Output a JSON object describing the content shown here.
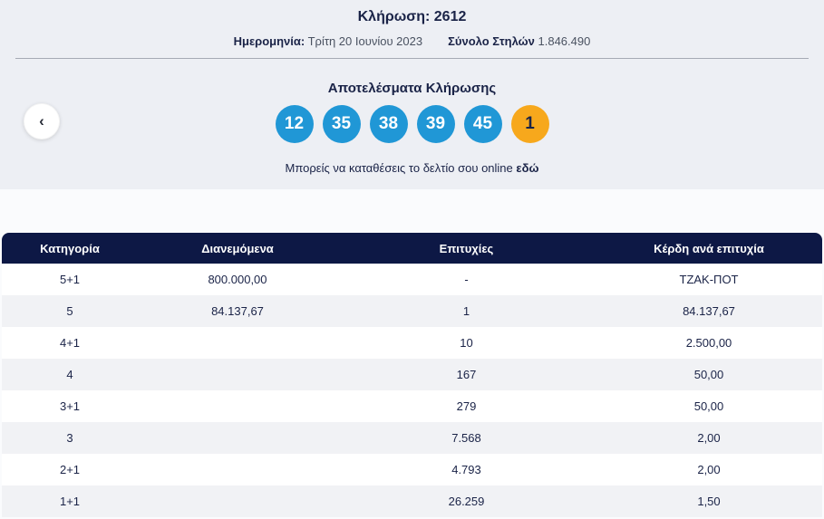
{
  "draw": {
    "title_label": "Κλήρωση:",
    "title_number": "2612",
    "date_label": "Ημερομηνία:",
    "date_value": "Τρίτη 20 Ιουνίου 2023",
    "columns_label": "Σύνολο Στηλών",
    "columns_value": "1.846.490",
    "results_heading": "Αποτελέσματα Κλήρωσης",
    "numbers": [
      "12",
      "35",
      "38",
      "39",
      "45"
    ],
    "bonus_number": "1",
    "online_text": "Μπορείς να καταθέσεις το δελτίο σου online",
    "online_link_label": "εδώ"
  },
  "nav": {
    "prev_arrow": "‹"
  },
  "colors": {
    "panel_bg": "#edeff4",
    "header_navy": "#0d1845",
    "ball_blue": "#2097d6",
    "ball_orange": "#f7a81c",
    "text_navy": "#1a2347",
    "row_alt_gray": "#f1f2f5"
  },
  "table": {
    "headers": [
      "Κατηγορία",
      "Διανεμόμενα",
      "Επιτυχίες",
      "Κέρδη ανά επιτυχία"
    ],
    "rows": [
      [
        "5+1",
        "800.000,00",
        "-",
        "ΤΖΑΚ-ΠΟΤ"
      ],
      [
        "5",
        "84.137,67",
        "1",
        "84.137,67"
      ],
      [
        "4+1",
        "",
        "10",
        "2.500,00"
      ],
      [
        "4",
        "",
        "167",
        "50,00"
      ],
      [
        "3+1",
        "",
        "279",
        "50,00"
      ],
      [
        "3",
        "",
        "7.568",
        "2,00"
      ],
      [
        "2+1",
        "",
        "4.793",
        "2,00"
      ],
      [
        "1+1",
        "",
        "26.259",
        "1,50"
      ]
    ]
  }
}
